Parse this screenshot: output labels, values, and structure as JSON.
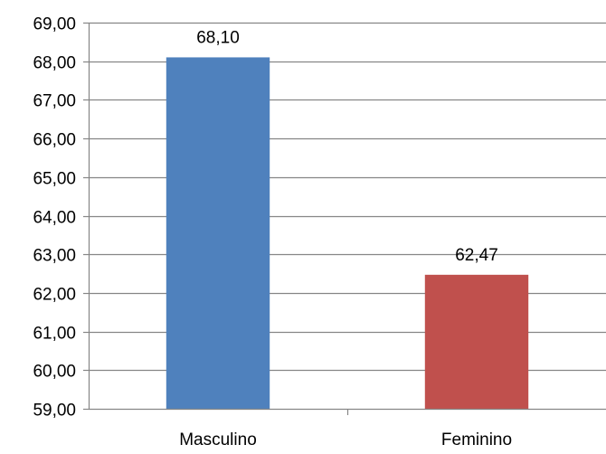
{
  "chart_data": {
    "type": "bar",
    "title": "",
    "xlabel": "",
    "ylabel": "",
    "categories": [
      "Masculino",
      "Feminino"
    ],
    "values": [
      68.1,
      62.47
    ],
    "data_labels": [
      "68,10",
      "62,47"
    ],
    "bar_colors": [
      "#4F81BD",
      "#C0504D"
    ],
    "ylim": [
      59,
      69
    ],
    "y_ticks": [
      59,
      60,
      61,
      62,
      63,
      64,
      65,
      66,
      67,
      68,
      69
    ],
    "y_tick_labels": [
      "59,00",
      "60,00",
      "61,00",
      "62,00",
      "63,00",
      "64,00",
      "65,00",
      "66,00",
      "67,00",
      "68,00",
      "69,00"
    ],
    "grid": true,
    "legend": "none"
  }
}
